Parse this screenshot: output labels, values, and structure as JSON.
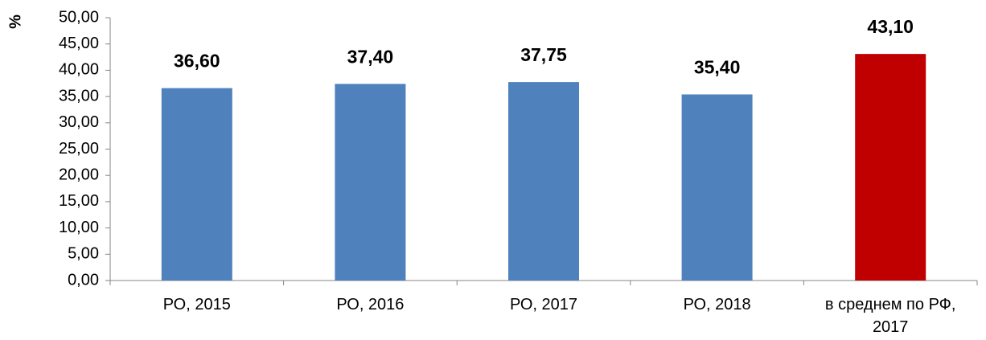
{
  "chart_data": {
    "type": "bar",
    "ylabel": "%",
    "categories": [
      "РО, 2015",
      "РО, 2016",
      "РО, 2017",
      "РО, 2018",
      "в среднем по РФ, 2017"
    ],
    "values": [
      36.6,
      37.4,
      37.75,
      35.4,
      43.1
    ],
    "value_labels": [
      "36,60",
      "37,40",
      "37,75",
      "35,40",
      "43,10"
    ],
    "colors": [
      "#4f81bd",
      "#4f81bd",
      "#4f81bd",
      "#4f81bd",
      "#c00000"
    ],
    "ylim": [
      0,
      50
    ],
    "yticks": [
      {
        "value": 0,
        "label": "0,00"
      },
      {
        "value": 5,
        "label": "5,00"
      },
      {
        "value": 10,
        "label": "10,00"
      },
      {
        "value": 15,
        "label": "15,00"
      },
      {
        "value": 20,
        "label": "20,00"
      },
      {
        "value": 25,
        "label": "25,00"
      },
      {
        "value": 30,
        "label": "30,00"
      },
      {
        "value": 35,
        "label": "35,00"
      },
      {
        "value": 40,
        "label": "40,00"
      },
      {
        "value": 45,
        "label": "45,00"
      },
      {
        "value": 50,
        "label": "50,00"
      }
    ],
    "grid": false
  }
}
